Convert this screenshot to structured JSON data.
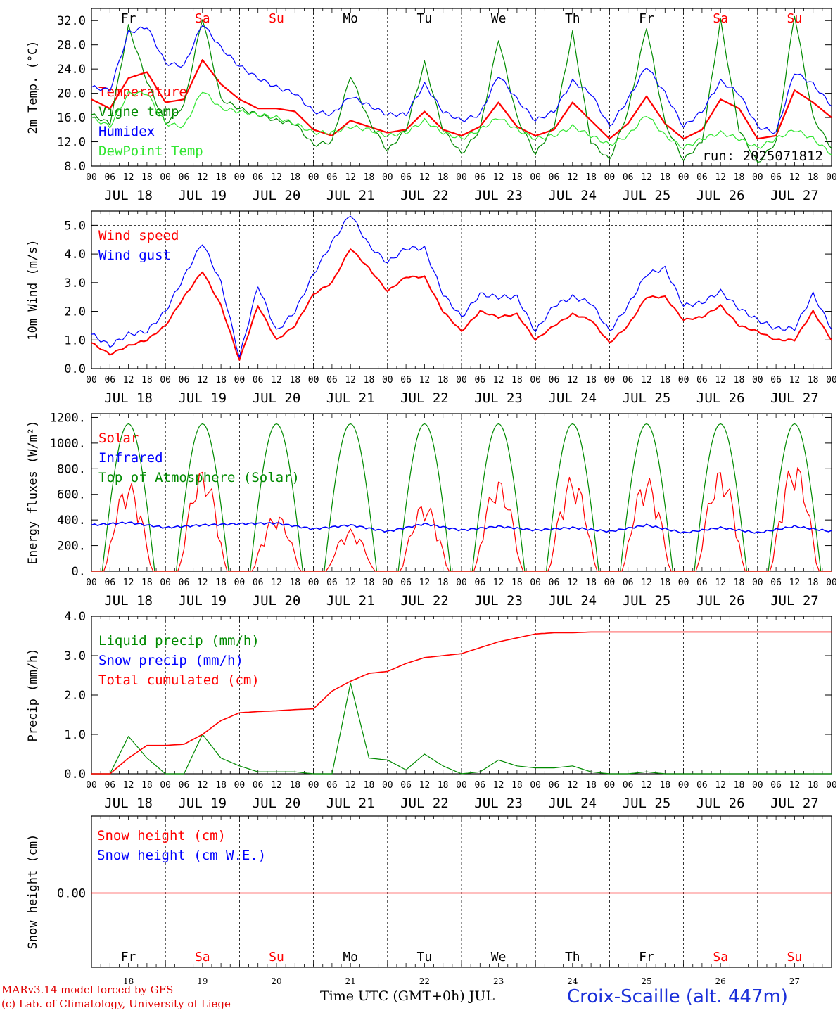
{
  "footer": {
    "model": "MARv3.14 model forced by GFS",
    "copyright": "(c) Lab. of Climatology, University of Liege",
    "xtitle": "Time UTC (GMT+0h) JUL",
    "station": "Croix-Scaille (alt. 447m)"
  },
  "colors": {
    "red": "#ff0000",
    "green": "#008a00",
    "blue": "#0000ff",
    "lightgreen": "#32e632",
    "weekend": "#ff0000",
    "weekday": "#000000"
  },
  "days": {
    "names": [
      "Fr",
      "Sa",
      "Su",
      "Mo",
      "Tu",
      "We",
      "Th",
      "Fr",
      "Sa",
      "Su"
    ],
    "weekend": [
      false,
      true,
      true,
      false,
      false,
      false,
      false,
      false,
      true,
      true
    ],
    "dates": [
      "JUL 18",
      "JUL 19",
      "JUL 20",
      "JUL 21",
      "JUL 22",
      "JUL 23",
      "JUL 24",
      "JUL 25",
      "JUL 26",
      "JUL 27"
    ],
    "numbers": [
      "18",
      "19",
      "20",
      "21",
      "22",
      "23",
      "24",
      "25",
      "26",
      "27"
    ],
    "hour_ticks": [
      "00",
      "06",
      "12",
      "18"
    ],
    "hour_end": "00"
  },
  "chart_data": [
    {
      "type": "line",
      "ylabel": "2m Temp. (°C)",
      "ylim": [
        8,
        34
      ],
      "yticks": [
        "8.0",
        "12.0",
        "16.0",
        "20.0",
        "24.0",
        "28.0",
        "32.0"
      ],
      "ytick_values": [
        8,
        12,
        16,
        20,
        24,
        28,
        32
      ],
      "annotation": "run: 2025071812",
      "x_hours": [
        0,
        6,
        12,
        18,
        24,
        30,
        36,
        42,
        48,
        54,
        60,
        66,
        72,
        78,
        84,
        90,
        96,
        102,
        108,
        114,
        120,
        126,
        132,
        138,
        144,
        150,
        156,
        162,
        168,
        174,
        180,
        186,
        192,
        198,
        204,
        210,
        216,
        222,
        228,
        234,
        240
      ],
      "series": [
        {
          "name": "Temperature",
          "color": "red",
          "width": 2.2,
          "values": [
            19,
            17.5,
            22.5,
            23.5,
            18.5,
            19,
            25.5,
            21.5,
            19,
            17.5,
            17.5,
            17,
            14,
            13,
            15.5,
            14.5,
            13.5,
            14,
            17,
            14,
            13,
            14.5,
            18.5,
            14.5,
            13,
            14,
            18.5,
            15.5,
            12.5,
            15,
            19.5,
            15,
            12.5,
            14,
            19,
            17.5,
            12.5,
            13,
            20.5,
            18.5,
            16
          ]
        },
        {
          "name": "Vigne temp",
          "color": "green",
          "width": 1.2,
          "values": [
            16.5,
            15,
            31,
            22,
            15,
            18,
            32.5,
            19,
            17.5,
            16.5,
            15.5,
            15,
            11.5,
            12,
            23,
            15.5,
            10.5,
            14,
            25,
            14,
            10,
            14,
            29,
            16,
            10,
            14.5,
            30,
            12,
            9,
            17,
            31,
            15,
            9,
            12,
            32,
            14,
            8.5,
            12,
            33,
            16,
            11
          ]
        },
        {
          "name": "Humidex",
          "color": "blue",
          "width": 1.2,
          "values": [
            21,
            20.5,
            30,
            31,
            25,
            24.5,
            31.5,
            27.5,
            24.5,
            22.5,
            21,
            20,
            17,
            16.5,
            19.5,
            18,
            16.5,
            16.5,
            21.5,
            17,
            15.5,
            16.5,
            23,
            19,
            15.5,
            17,
            22,
            20,
            14.5,
            19,
            24.5,
            20,
            14.5,
            17,
            22,
            20,
            14.5,
            13.5,
            23.5,
            21.5,
            18
          ]
        },
        {
          "name": "DewPoint Temp",
          "color": "lightgreen",
          "width": 1.2,
          "values": [
            16,
            14.5,
            20,
            20,
            15,
            14.5,
            20.5,
            17.5,
            17,
            16.5,
            16,
            15,
            13.5,
            13.5,
            14.5,
            14,
            13,
            13.5,
            15.5,
            13.5,
            12.5,
            14,
            16,
            14,
            12.5,
            13,
            14.5,
            13,
            11.5,
            13,
            16.5,
            13,
            11,
            12.5,
            13.5,
            12.5,
            11,
            12.5,
            14,
            12.5,
            10
          ]
        }
      ]
    },
    {
      "type": "line",
      "ylabel": "10m Wind (m/s)",
      "ylim": [
        0,
        5.5
      ],
      "yticks": [
        "0.0",
        "1.0",
        "2.0",
        "3.0",
        "4.0",
        "5.0"
      ],
      "ytick_values": [
        0,
        1,
        2,
        3,
        4,
        5
      ],
      "ref_line": 5.0,
      "x_hours": [
        0,
        6,
        12,
        18,
        24,
        30,
        36,
        42,
        48,
        54,
        60,
        66,
        72,
        78,
        84,
        90,
        96,
        102,
        108,
        114,
        120,
        126,
        132,
        138,
        144,
        150,
        156,
        162,
        168,
        174,
        180,
        186,
        192,
        198,
        204,
        210,
        216,
        222,
        228,
        234,
        240
      ],
      "series": [
        {
          "name": "Wind speed",
          "color": "red",
          "width": 2,
          "values": [
            0.9,
            0.5,
            0.8,
            1.0,
            1.5,
            2.5,
            3.4,
            2.2,
            0.3,
            2.2,
            1.0,
            1.5,
            2.6,
            3.0,
            4.2,
            3.5,
            2.7,
            3.2,
            3.2,
            2.0,
            1.3,
            2.0,
            1.8,
            1.9,
            1.0,
            1.5,
            1.9,
            1.7,
            0.9,
            1.5,
            2.5,
            2.5,
            1.7,
            1.8,
            2.2,
            1.5,
            1.3,
            1.0,
            1.0,
            2.0,
            1.0
          ]
        },
        {
          "name": "Wind gust",
          "color": "blue",
          "width": 1.2,
          "values": [
            1.2,
            0.8,
            1.2,
            1.3,
            2.0,
            3.2,
            4.4,
            3.0,
            0.4,
            2.9,
            1.3,
            2.0,
            3.3,
            4.4,
            5.4,
            4.3,
            3.7,
            4.2,
            4.2,
            2.6,
            1.8,
            2.6,
            2.5,
            2.5,
            1.3,
            2.2,
            2.5,
            2.3,
            1.3,
            2.2,
            3.3,
            3.5,
            2.2,
            2.3,
            2.7,
            2.1,
            1.7,
            1.4,
            1.4,
            2.6,
            1.4
          ]
        }
      ]
    },
    {
      "type": "line",
      "ylabel": "Energy fluxes (W/m²)",
      "ylim": [
        0,
        1230
      ],
      "yticks": [
        "0.",
        "200.",
        "400.",
        "600.",
        "800.",
        "1000.",
        "1200."
      ],
      "ytick_values": [
        0,
        200,
        400,
        600,
        800,
        1000,
        1200
      ],
      "toa_peak": 1150,
      "solar_peaks": [
        700,
        800,
        450,
        330,
        540,
        720,
        750,
        740,
        800,
        860
      ],
      "infrared": [
        {
          "h": 0,
          "v": 360
        },
        {
          "h": 12,
          "v": 380
        },
        {
          "h": 24,
          "v": 340
        },
        {
          "h": 36,
          "v": 360
        },
        {
          "h": 48,
          "v": 370
        },
        {
          "h": 60,
          "v": 375
        },
        {
          "h": 72,
          "v": 330
        },
        {
          "h": 84,
          "v": 360
        },
        {
          "h": 96,
          "v": 310
        },
        {
          "h": 108,
          "v": 370
        },
        {
          "h": 120,
          "v": 320
        },
        {
          "h": 132,
          "v": 350
        },
        {
          "h": 144,
          "v": 320
        },
        {
          "h": 156,
          "v": 340
        },
        {
          "h": 168,
          "v": 310
        },
        {
          "h": 180,
          "v": 360
        },
        {
          "h": 192,
          "v": 300
        },
        {
          "h": 204,
          "v": 340
        },
        {
          "h": 216,
          "v": 300
        },
        {
          "h": 228,
          "v": 350
        },
        {
          "h": 240,
          "v": 310
        }
      ],
      "series": [
        {
          "name": "Solar",
          "color": "red"
        },
        {
          "name": "Infrared",
          "color": "blue"
        },
        {
          "name": "Top of Atmosphere (Solar)",
          "color": "green"
        }
      ]
    },
    {
      "type": "line",
      "ylabel": "Precip (mm/h)",
      "ylim": [
        0,
        4.0
      ],
      "yticks": [
        "0.0",
        "1.0",
        "2.0",
        "3.0",
        "4.0"
      ],
      "ytick_values": [
        0,
        1,
        2,
        3,
        4
      ],
      "x_hours": [
        0,
        6,
        12,
        18,
        24,
        30,
        36,
        42,
        48,
        54,
        60,
        66,
        72,
        78,
        84,
        90,
        96,
        102,
        108,
        114,
        120,
        126,
        132,
        138,
        144,
        150,
        156,
        162,
        168,
        174,
        180,
        186,
        192,
        198,
        204,
        210,
        216,
        222,
        228,
        234,
        240
      ],
      "series": [
        {
          "name": "Liquid precip (mm/h)",
          "color": "green",
          "width": 1.2,
          "values": [
            0,
            0,
            0.95,
            0.4,
            0,
            0,
            1.0,
            0.4,
            0.2,
            0.05,
            0.05,
            0.05,
            0,
            0,
            2.3,
            0.4,
            0.35,
            0.1,
            0.5,
            0.2,
            0,
            0.05,
            0.35,
            0.2,
            0.15,
            0.15,
            0.2,
            0.05,
            0,
            0,
            0.05,
            0,
            0,
            0,
            0,
            0,
            0,
            0,
            0,
            0,
            0
          ]
        },
        {
          "name": "Snow precip (mm/h)",
          "color": "blue",
          "width": 1.2,
          "values": []
        },
        {
          "name": "Total cumulated (cm)",
          "color": "red",
          "width": 1.6,
          "values": [
            0,
            0,
            0.4,
            0.72,
            0.72,
            0.75,
            1.0,
            1.35,
            1.55,
            1.58,
            1.6,
            1.63,
            1.65,
            2.1,
            2.35,
            2.55,
            2.6,
            2.8,
            2.95,
            3.0,
            3.05,
            3.2,
            3.35,
            3.45,
            3.55,
            3.58,
            3.58,
            3.6,
            3.6,
            3.6,
            3.6,
            3.6,
            3.6,
            3.6,
            3.6,
            3.6,
            3.6,
            3.6,
            3.6,
            3.6,
            3.6
          ]
        }
      ]
    },
    {
      "type": "line",
      "ylabel": "Snow height (cm)",
      "yticks": [
        "0.00"
      ],
      "ytick_values": [
        0
      ],
      "series": [
        {
          "name": "Snow height (cm)",
          "color": "red",
          "values": [
            0,
            0
          ]
        },
        {
          "name": "Snow height (cm W.E.)",
          "color": "blue",
          "values": []
        }
      ]
    }
  ]
}
